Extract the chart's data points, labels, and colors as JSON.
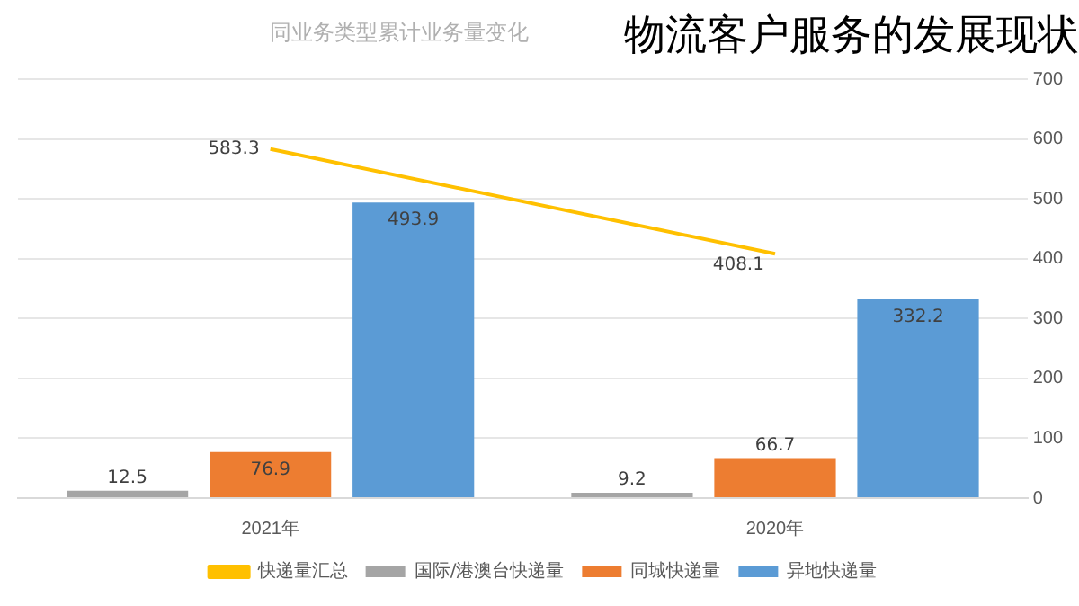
{
  "chart_data": {
    "type": "bar",
    "title": "物流客户服务的发展现状",
    "subtitle": "同业务类型累计业务量变化",
    "categories": [
      "2021年",
      "2020年"
    ],
    "series": [
      {
        "name": "国际/港澳台快递量",
        "color": "#a5a5a5",
        "values": [
          12.5,
          9.2
        ]
      },
      {
        "name": "同城快递量",
        "color": "#ed7d31",
        "values": [
          76.9,
          66.7
        ]
      },
      {
        "name": "异地快递量",
        "color": "#5b9bd5",
        "values": [
          493.9,
          332.2
        ]
      },
      {
        "name": "快递量汇总",
        "type": "line",
        "color": "#ffc000",
        "values": [
          583.3,
          408.1
        ]
      }
    ],
    "ylim": [
      0,
      700
    ],
    "yticks": [
      0,
      100,
      200,
      300,
      400,
      500,
      600,
      700
    ],
    "grid": true,
    "legend": "bottom",
    "marker": "none",
    "data_labels": true
  }
}
